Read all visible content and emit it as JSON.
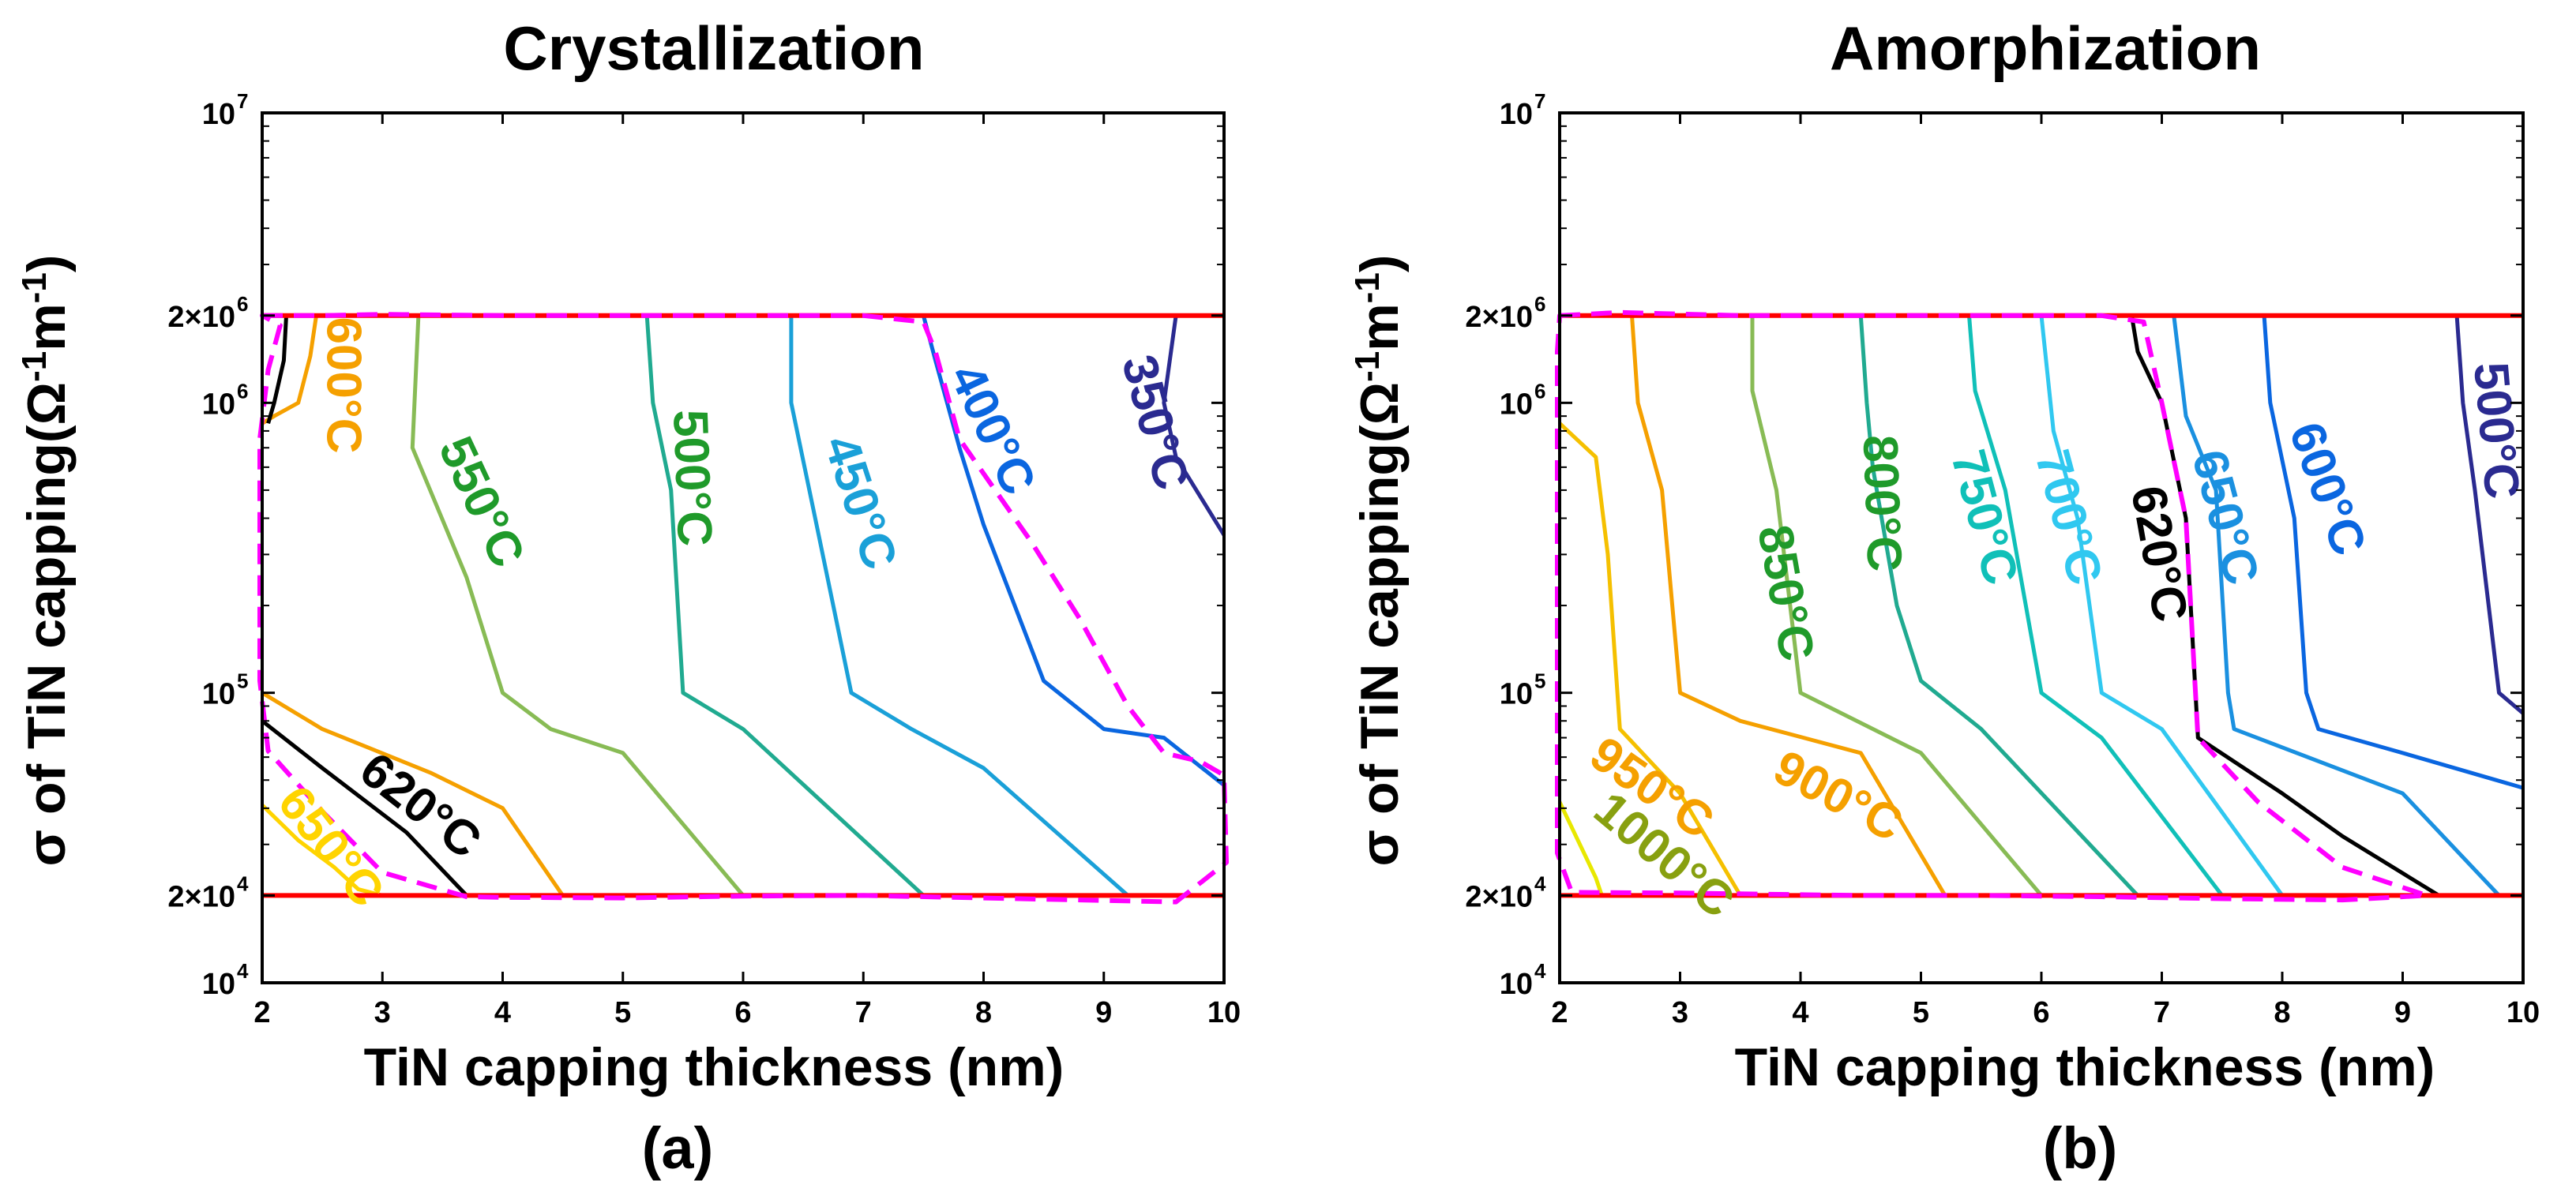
{
  "figure": {
    "panel_labels": [
      "(a)",
      "(b)"
    ]
  },
  "chart_data": [
    {
      "type": "contour",
      "title": "Crystallization",
      "xlabel": "TiN capping thickness (nm)",
      "ylabel_parts": {
        "pre": "σ of TiN capping(Ω",
        "exp1": "-1",
        "mid": "m",
        "exp2": "-1",
        "post": ")"
      },
      "xlim": [
        2,
        10
      ],
      "ylim": [
        10000,
        10000000
      ],
      "yscale": "log",
      "x_ticks": [
        "2",
        "3",
        "4",
        "5",
        "6",
        "7",
        "8",
        "9",
        "10"
      ],
      "y_ticks": [
        {
          "value": 10000,
          "base": "10",
          "exp": "4"
        },
        {
          "value": 20000,
          "base": "2×10",
          "exp": "4"
        },
        {
          "value": 100000,
          "base": "10",
          "exp": "5"
        },
        {
          "value": 1000000,
          "base": "10",
          "exp": "6"
        },
        {
          "value": 2000000,
          "base": "2×10",
          "exp": "6"
        },
        {
          "value": 10000000,
          "base": "10",
          "exp": "7"
        }
      ],
      "bounds": [
        20000,
        2000000
      ],
      "bound_color": "#ff0000",
      "window_color": "#ff00ff",
      "window": [
        [
          2.0,
          2000000
        ],
        [
          2.5,
          2000000
        ],
        [
          3.0,
          2020000
        ],
        [
          4.0,
          2000000
        ],
        [
          5.5,
          2000000
        ],
        [
          7.0,
          2000000
        ],
        [
          7.5,
          1900000
        ],
        [
          7.6,
          1500000
        ],
        [
          7.8,
          750000
        ],
        [
          8.4,
          330000
        ],
        [
          8.8,
          180000
        ],
        [
          9.2,
          90000
        ],
        [
          9.5,
          62000
        ],
        [
          9.8,
          58000
        ],
        [
          10.0,
          52000
        ],
        [
          10.02,
          26000
        ],
        [
          9.6,
          19000
        ],
        [
          8.8,
          19300
        ],
        [
          8.0,
          19600
        ],
        [
          7.0,
          20000
        ],
        [
          6.0,
          19900
        ],
        [
          5.0,
          19600
        ],
        [
          4.0,
          19700
        ],
        [
          3.7,
          19800
        ],
        [
          3.0,
          24000
        ],
        [
          2.5,
          39000
        ],
        [
          2.05,
          63000
        ],
        [
          1.98,
          110000
        ],
        [
          1.98,
          450000
        ],
        [
          1.98,
          750000
        ],
        [
          2.05,
          1300000
        ],
        [
          2.15,
          1850000
        ],
        [
          2.0,
          2000000
        ]
      ],
      "series": [
        {
          "name": "650°C",
          "color": "#ffd400",
          "points": [
            [
              2.0,
              41000
            ],
            [
              2.3,
              31000
            ],
            [
              2.6,
              25000
            ],
            [
              2.8,
              21000
            ],
            [
              3.0,
              20000
            ]
          ]
        },
        {
          "name": "600°C",
          "color": "#f5a000",
          "points": [
            [
              2.45,
              2000000
            ],
            [
              2.4,
              1450000
            ],
            [
              2.3,
              1000000
            ],
            [
              2.1,
              900000
            ],
            [
              2.0,
              850000
            ]
          ]
        },
        {
          "name": "600°C",
          "color": "#f5a000",
          "points": [
            [
              2.0,
              100000
            ],
            [
              2.5,
              75000
            ],
            [
              3.4,
              53000
            ],
            [
              4.0,
              40000
            ],
            [
              4.5,
              20000
            ]
          ]
        },
        {
          "name": "620°C",
          "color": "#000000",
          "points": [
            [
              2.2,
              2000000
            ],
            [
              2.18,
              1400000
            ],
            [
              2.1,
              1000000
            ],
            [
              2.05,
              850000
            ]
          ]
        },
        {
          "name": "620°C",
          "color": "#000000",
          "points": [
            [
              2.0,
              80000
            ],
            [
              2.5,
              55000
            ],
            [
              3.2,
              33000
            ],
            [
              3.7,
              20000
            ]
          ]
        },
        {
          "name": "550°C",
          "color": "#88bb55",
          "points": [
            [
              3.3,
              2000000
            ],
            [
              3.25,
              700000
            ],
            [
              3.7,
              250000
            ],
            [
              4.0,
              100000
            ],
            [
              4.4,
              75000
            ],
            [
              5.0,
              62000
            ],
            [
              6.0,
              20000
            ]
          ]
        },
        {
          "name": "500°C",
          "color": "#20aa90",
          "points": [
            [
              5.2,
              2000000
            ],
            [
              5.25,
              1000000
            ],
            [
              5.4,
              500000
            ],
            [
              5.5,
              100000
            ],
            [
              6.0,
              75000
            ],
            [
              7.5,
              20000
            ]
          ]
        },
        {
          "name": "450°C",
          "color": "#1aa0d8",
          "points": [
            [
              6.4,
              2000000
            ],
            [
              6.4,
              1000000
            ],
            [
              6.6,
              400000
            ],
            [
              6.9,
              100000
            ],
            [
              7.4,
              75000
            ],
            [
              8.0,
              55000
            ],
            [
              9.2,
              20000
            ]
          ]
        },
        {
          "name": "400°C",
          "color": "#0a66e0",
          "points": [
            [
              7.5,
              2000000
            ],
            [
              7.6,
              1400000
            ],
            [
              7.8,
              700000
            ],
            [
              8.0,
              380000
            ],
            [
              8.5,
              110000
            ],
            [
              9.0,
              75000
            ],
            [
              9.5,
              70000
            ],
            [
              10.0,
              48000
            ]
          ]
        },
        {
          "name": "350°C",
          "color": "#2a2a90",
          "points": [
            [
              9.6,
              2000000
            ],
            [
              9.5,
              1000000
            ],
            [
              9.6,
              650000
            ],
            [
              10.0,
              350000
            ]
          ]
        }
      ],
      "contour_labels": [
        {
          "text": "650°C",
          "x": 2.55,
          "y": 29000,
          "angle": 52,
          "color": "#ffd400"
        },
        {
          "text": "600°C",
          "x": 2.65,
          "y": 1150000,
          "angle": 90,
          "color": "#f5a000"
        },
        {
          "text": "620°C",
          "x": 3.3,
          "y": 40000,
          "angle": 38,
          "color": "#000000"
        },
        {
          "text": "550°C",
          "x": 3.8,
          "y": 450000,
          "angle": 65,
          "color": "#1f9a2a"
        },
        {
          "text": "500°C",
          "x": 5.55,
          "y": 550000,
          "angle": 88,
          "color": "#1f9a2a"
        },
        {
          "text": "450°C",
          "x": 6.95,
          "y": 450000,
          "angle": 72,
          "color": "#1aa0d8"
        },
        {
          "text": "400°C",
          "x": 8.05,
          "y": 800000,
          "angle": 65,
          "color": "#0a66e0"
        },
        {
          "text": "350°C",
          "x": 9.4,
          "y": 850000,
          "angle": 75,
          "color": "#2a2a90"
        }
      ]
    },
    {
      "type": "contour",
      "title": "Amorphization",
      "xlabel": "TiN capping thickness (nm)",
      "ylabel_parts": {
        "pre": "σ of TiN capping(Ω",
        "exp1": "-1",
        "mid": "m",
        "exp2": "-1",
        "post": ")"
      },
      "xlim": [
        2,
        10
      ],
      "ylim": [
        10000,
        10000000
      ],
      "yscale": "log",
      "x_ticks": [
        "2",
        "3",
        "4",
        "5",
        "6",
        "7",
        "8",
        "9",
        "10"
      ],
      "y_ticks": [
        {
          "value": 10000,
          "base": "10",
          "exp": "4"
        },
        {
          "value": 20000,
          "base": "2×10",
          "exp": "4"
        },
        {
          "value": 100000,
          "base": "10",
          "exp": "5"
        },
        {
          "value": 1000000,
          "base": "10",
          "exp": "6"
        },
        {
          "value": 2000000,
          "base": "2×10",
          "exp": "6"
        },
        {
          "value": 10000000,
          "base": "10",
          "exp": "7"
        }
      ],
      "bounds": [
        20000,
        2000000
      ],
      "bound_color": "#ff0000",
      "window_color": "#ff00ff",
      "window": [
        [
          2.0,
          2000000
        ],
        [
          2.5,
          2050000
        ],
        [
          3.5,
          2000000
        ],
        [
          5.0,
          2000000
        ],
        [
          6.5,
          2000000
        ],
        [
          6.85,
          1900000
        ],
        [
          7.0,
          1000000
        ],
        [
          7.2,
          400000
        ],
        [
          7.3,
          70000
        ],
        [
          7.8,
          42000
        ],
        [
          8.5,
          25000
        ],
        [
          9.2,
          20000
        ],
        [
          8.5,
          19300
        ],
        [
          7.5,
          19500
        ],
        [
          6.5,
          19800
        ],
        [
          5.5,
          20000
        ],
        [
          4.5,
          20000
        ],
        [
          3.0,
          20400
        ],
        [
          2.1,
          20500
        ],
        [
          1.98,
          28000
        ],
        [
          1.98,
          45000
        ],
        [
          1.98,
          100000
        ],
        [
          1.98,
          600000
        ],
        [
          1.98,
          1500000
        ],
        [
          2.0,
          2000000
        ]
      ],
      "series": [
        {
          "name": "1000°C",
          "color": "#e8e800",
          "points": [
            [
              2.0,
              42000
            ],
            [
              2.3,
              23000
            ],
            [
              2.35,
              20000
            ]
          ]
        },
        {
          "name": "1000°C",
          "color": "#88a010",
          "points": [
            [
              2.0,
              47000
            ]
          ]
        },
        {
          "name": "950°C",
          "color": "#f5c000",
          "points": [
            [
              2.0,
              850000
            ],
            [
              2.3,
              650000
            ],
            [
              2.4,
              300000
            ],
            [
              2.5,
              75000
            ],
            [
              3.0,
              45000
            ],
            [
              3.5,
              20000
            ]
          ]
        },
        {
          "name": "900°C",
          "color": "#f5a000",
          "points": [
            [
              2.6,
              2000000
            ],
            [
              2.65,
              1000000
            ],
            [
              2.85,
              500000
            ],
            [
              3.0,
              100000
            ],
            [
              3.5,
              80000
            ],
            [
              4.5,
              62000
            ],
            [
              5.2,
              20000
            ]
          ]
        },
        {
          "name": "850°C",
          "color": "#88bb55",
          "points": [
            [
              3.6,
              2000000
            ],
            [
              3.6,
              1100000
            ],
            [
              3.8,
              500000
            ],
            [
              4.0,
              100000
            ],
            [
              5.0,
              62000
            ],
            [
              6.0,
              20000
            ]
          ]
        },
        {
          "name": "800°C",
          "color": "#20aa90",
          "points": [
            [
              4.5,
              2000000
            ],
            [
              4.55,
              1000000
            ],
            [
              4.6,
              600000
            ],
            [
              4.8,
              200000
            ],
            [
              5.0,
              110000
            ],
            [
              5.5,
              75000
            ],
            [
              6.8,
              20000
            ]
          ]
        },
        {
          "name": "750°C",
          "color": "#10c0b8",
          "points": [
            [
              5.4,
              2000000
            ],
            [
              5.45,
              1100000
            ],
            [
              5.7,
              500000
            ],
            [
              6.0,
              100000
            ],
            [
              6.5,
              70000
            ],
            [
              7.5,
              20000
            ]
          ]
        },
        {
          "name": "700°C",
          "color": "#30c8f0",
          "points": [
            [
              6.0,
              2000000
            ],
            [
              6.1,
              800000
            ],
            [
              6.3,
              400000
            ],
            [
              6.5,
              100000
            ],
            [
              7.0,
              75000
            ],
            [
              8.0,
              20000
            ]
          ]
        },
        {
          "name": "620°C",
          "color": "#000000",
          "points": [
            [
              6.75,
              2000000
            ],
            [
              6.8,
              1500000
            ],
            [
              7.0,
              1000000
            ],
            [
              7.2,
              400000
            ],
            [
              7.3,
              70000
            ],
            [
              8.0,
              45000
            ],
            [
              8.5,
              32000
            ],
            [
              9.3,
              20000
            ]
          ]
        },
        {
          "name": "650°C",
          "color": "#1a90e0",
          "points": [
            [
              7.1,
              2000000
            ],
            [
              7.2,
              900000
            ],
            [
              7.45,
              500000
            ],
            [
              7.55,
              100000
            ],
            [
              7.6,
              75000
            ],
            [
              9.0,
              45000
            ],
            [
              9.8,
              20000
            ]
          ]
        },
        {
          "name": "600°C",
          "color": "#0a66e0",
          "points": [
            [
              7.85,
              2000000
            ],
            [
              7.9,
              1000000
            ],
            [
              8.1,
              400000
            ],
            [
              8.2,
              100000
            ],
            [
              8.3,
              75000
            ],
            [
              9.0,
              62000
            ],
            [
              10.0,
              47000
            ]
          ]
        },
        {
          "name": "500°C",
          "color": "#2a2a90",
          "points": [
            [
              9.45,
              2000000
            ],
            [
              9.5,
              1000000
            ],
            [
              9.6,
              500000
            ],
            [
              9.8,
              100000
            ],
            [
              10.0,
              85000
            ]
          ]
        }
      ],
      "contour_labels": [
        {
          "text": "1000°C",
          "x": 2.85,
          "y": 27000,
          "angle": 40,
          "color": "#88a010"
        },
        {
          "text": "950°C",
          "x": 2.75,
          "y": 46000,
          "angle": 35,
          "color": "#f5a000"
        },
        {
          "text": "900°C",
          "x": 4.3,
          "y": 43000,
          "angle": 28,
          "color": "#f5a000"
        },
        {
          "text": "850°C",
          "x": 3.85,
          "y": 220000,
          "angle": 80,
          "color": "#1f9a2a"
        },
        {
          "text": "800°C",
          "x": 4.65,
          "y": 450000,
          "angle": 88,
          "color": "#1f9a2a"
        },
        {
          "text": "750°C",
          "x": 5.5,
          "y": 400000,
          "angle": 75,
          "color": "#10c0b8"
        },
        {
          "text": "700°C",
          "x": 6.2,
          "y": 400000,
          "angle": 75,
          "color": "#30c8f0"
        },
        {
          "text": "620°C",
          "x": 6.95,
          "y": 300000,
          "angle": 80,
          "color": "#000000"
        },
        {
          "text": "650°C",
          "x": 7.5,
          "y": 400000,
          "angle": 75,
          "color": "#1a90e0"
        },
        {
          "text": "600°C",
          "x": 8.35,
          "y": 500000,
          "angle": 70,
          "color": "#0a66e0"
        },
        {
          "text": "500°C",
          "x": 9.75,
          "y": 800000,
          "angle": 85,
          "color": "#2a2a90"
        }
      ]
    }
  ]
}
